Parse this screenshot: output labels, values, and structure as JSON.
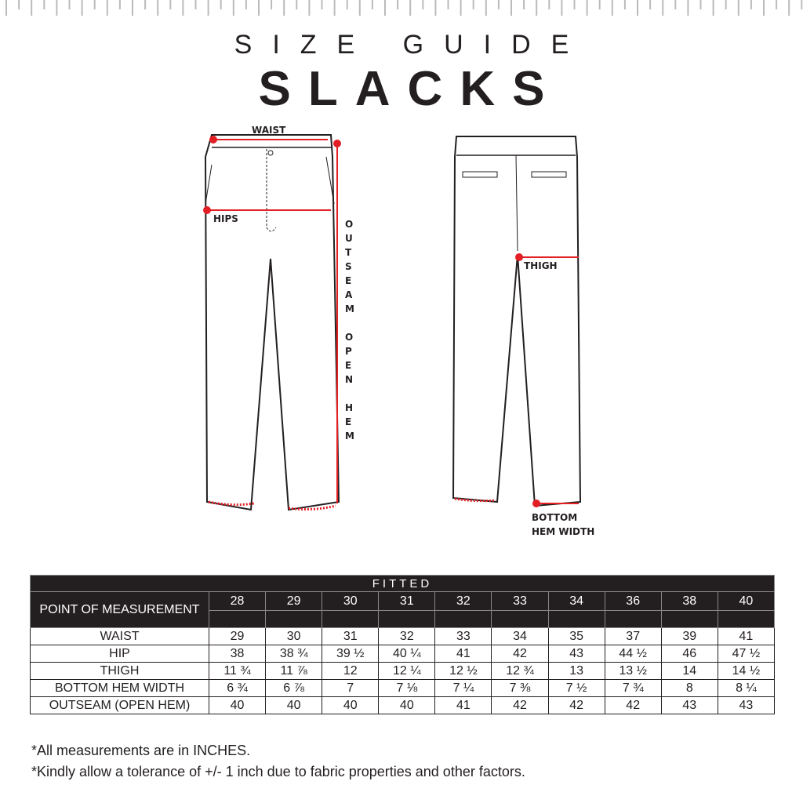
{
  "header": {
    "subtitle": "SIZE GUIDE",
    "title": "SLACKS"
  },
  "diagram": {
    "front_labels": {
      "waist": "WAIST",
      "hips": "HIPS",
      "outseam": "OUTSEAM OPEN HEM"
    },
    "back_labels": {
      "thigh": "THIGH",
      "bottom_hem_line1": "BOTTOM",
      "bottom_hem_line2": "HEM WIDTH"
    },
    "accent_color": "#e31e24"
  },
  "table": {
    "fit": "FITTED",
    "pom_header": "POINT OF MEASUREMENT",
    "sizes": [
      "28",
      "29",
      "30",
      "31",
      "32",
      "33",
      "34",
      "36",
      "38",
      "40"
    ],
    "rows": [
      {
        "label": "WAIST",
        "values": [
          "29",
          "30",
          "31",
          "32",
          "33",
          "34",
          "35",
          "37",
          "39",
          "41"
        ]
      },
      {
        "label": "HIP",
        "values": [
          "38",
          "38 ¾",
          "39 ½",
          "40 ¼",
          "41",
          "42",
          "43",
          "44 ½",
          "46",
          "47 ½"
        ]
      },
      {
        "label": "THIGH",
        "values": [
          "11 ¾",
          "11 ⅞",
          "12",
          "12 ¼",
          "12 ½",
          "12 ¾",
          "13",
          "13 ½",
          "14",
          "14  ½"
        ]
      },
      {
        "label": "BOTTOM HEM WIDTH",
        "values": [
          "6 ¾",
          "6  ⅞",
          "7",
          "7 ⅛",
          "7 ¼",
          "7 ⅜",
          "7 ½",
          "7 ¾",
          "8",
          "8 ¼"
        ]
      },
      {
        "label": "OUTSEAM (OPEN HEM)",
        "values": [
          "40",
          "40",
          "40",
          "40",
          "41",
          "42",
          "42",
          "42",
          "43",
          "43"
        ]
      }
    ]
  },
  "notes": [
    "*All measurements are in INCHES.",
    "*Kindly allow a tolerance of +/- 1 inch due to fabric properties and other factors."
  ]
}
